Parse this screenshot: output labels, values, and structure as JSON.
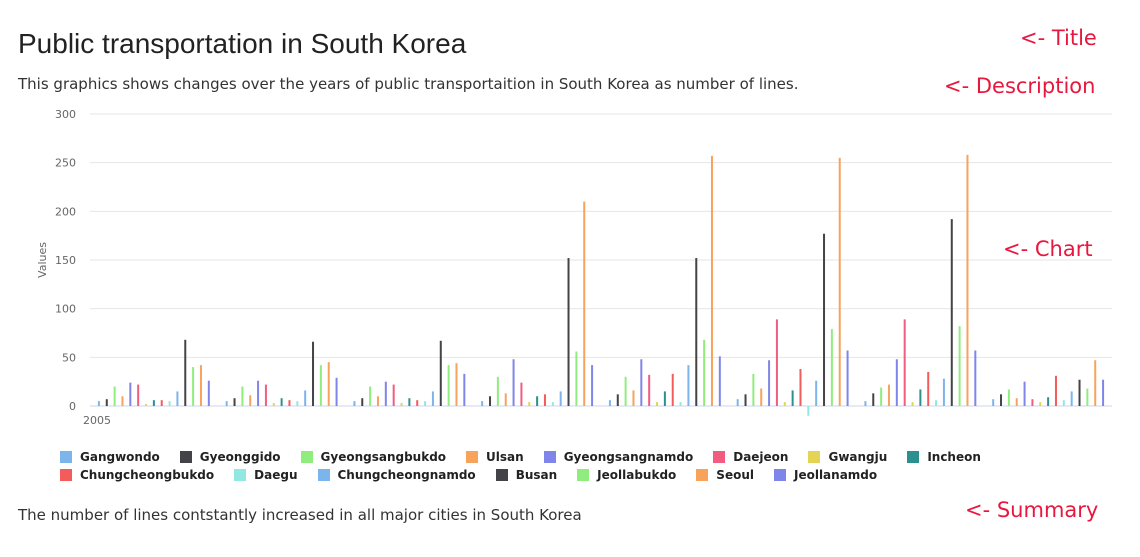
{
  "page": {
    "title": "Public transportation in South Korea",
    "description": "This graphics shows changes over the years of public transportaition in South Korea as number of lines.",
    "summary": "The number of lines contstantly increased in all major cities in South Korea",
    "annotations": {
      "title": "<- Title",
      "description": "<- Description",
      "chart": "<- Chart",
      "summary": "<- Summary"
    },
    "annotation_color": "#e8173f"
  },
  "chart_data": {
    "type": "bar",
    "ylabel": "Values",
    "xlabel": "",
    "ylim": [
      0,
      300
    ],
    "yticks": [
      0,
      50,
      100,
      150,
      200,
      250,
      300
    ],
    "x_tick_label": "2005",
    "grid": true,
    "legend_position": "bottom",
    "groups": 8,
    "series": [
      {
        "name": "Gangwondo",
        "color": "#7cb5ec",
        "values": [
          5,
          5,
          5,
          5,
          6,
          7,
          5,
          7
        ]
      },
      {
        "name": "Gyeonggido",
        "color": "#434348",
        "values": [
          7,
          8,
          8,
          10,
          12,
          12,
          13,
          12
        ]
      },
      {
        "name": "Gyeongsangbukdo",
        "color": "#90ed7d",
        "values": [
          20,
          20,
          20,
          30,
          30,
          33,
          19,
          17
        ]
      },
      {
        "name": "Ulsan",
        "color": "#f7a35c",
        "values": [
          10,
          11,
          10,
          13,
          16,
          18,
          22,
          8
        ]
      },
      {
        "name": "Gyeongsangnamdo",
        "color": "#8085e9",
        "values": [
          24,
          26,
          25,
          48,
          48,
          47,
          48,
          25
        ]
      },
      {
        "name": "Daejeon",
        "color": "#f15c80",
        "values": [
          22,
          22,
          22,
          24,
          32,
          89,
          89,
          7
        ]
      },
      {
        "name": "Gwangju",
        "color": "#e4d354",
        "values": [
          2,
          3,
          3,
          4,
          4,
          4,
          4,
          4
        ]
      },
      {
        "name": "Incheon",
        "color": "#2b908f",
        "values": [
          6,
          8,
          8,
          10,
          15,
          16,
          17,
          9
        ]
      },
      {
        "name": "Chungcheongbukdo",
        "color": "#f45b5b",
        "values": [
          6,
          6,
          6,
          12,
          33,
          38,
          35,
          31
        ]
      },
      {
        "name": "Daegu",
        "color": "#91e8e1",
        "values": [
          5,
          5,
          5,
          4,
          4,
          -10,
          6,
          6
        ]
      },
      {
        "name": "Chungcheongnamdo",
        "color": "#7cb5ec",
        "values": [
          15,
          16,
          15,
          15,
          42,
          26,
          28,
          15
        ]
      },
      {
        "name": "Busan",
        "color": "#434348",
        "values": [
          68,
          66,
          67,
          152,
          152,
          177,
          192,
          27
        ]
      },
      {
        "name": "Jeollabukdo",
        "color": "#90ed7d",
        "values": [
          40,
          42,
          42,
          56,
          68,
          79,
          82,
          18
        ]
      },
      {
        "name": "Seoul",
        "color": "#f7a35c",
        "values": [
          42,
          45,
          44,
          210,
          257,
          255,
          258,
          47
        ]
      },
      {
        "name": "Jeollanamdo",
        "color": "#8085e9",
        "values": [
          26,
          29,
          33,
          42,
          51,
          57,
          57,
          27
        ]
      }
    ]
  }
}
